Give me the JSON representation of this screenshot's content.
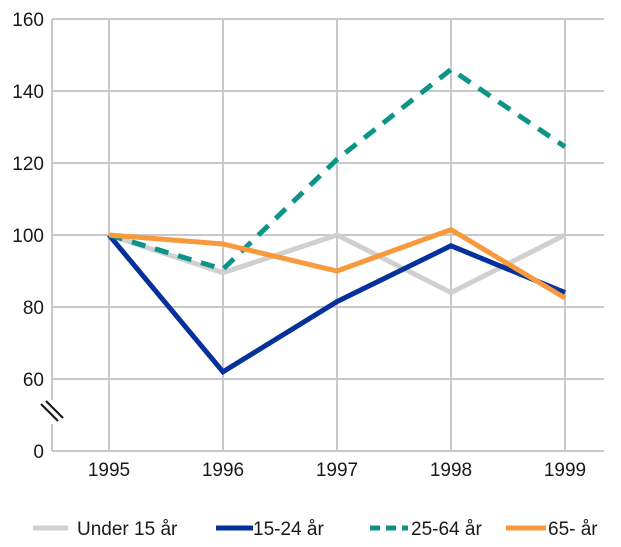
{
  "chart_data": {
    "type": "line",
    "title": "",
    "xlabel": "",
    "ylabel": "",
    "x": [
      "1995",
      "1996",
      "1997",
      "1998",
      "1999"
    ],
    "y_ticks": [
      "0",
      "60",
      "80",
      "100",
      "120",
      "140",
      "160"
    ],
    "ylim": [
      60,
      160
    ],
    "y_axis_break": true,
    "grid": true,
    "legend_position": "bottom",
    "series": [
      {
        "name": "Under 15 år",
        "color": "#d0d0d0",
        "dashed": false,
        "values": [
          100,
          89.5,
          100,
          84,
          100
        ]
      },
      {
        "name": "15-24 år",
        "color": "#06319a",
        "dashed": false,
        "values": [
          100,
          62,
          81.5,
          97,
          84
        ]
      },
      {
        "name": "25-64 år",
        "color": "#0d9488",
        "dashed": true,
        "values": [
          100,
          90.5,
          121,
          146,
          124.5
        ]
      },
      {
        "name": "65- år",
        "color": "#f7993c",
        "dashed": false,
        "values": [
          100,
          97.5,
          90,
          101.5,
          82.5
        ]
      }
    ]
  }
}
